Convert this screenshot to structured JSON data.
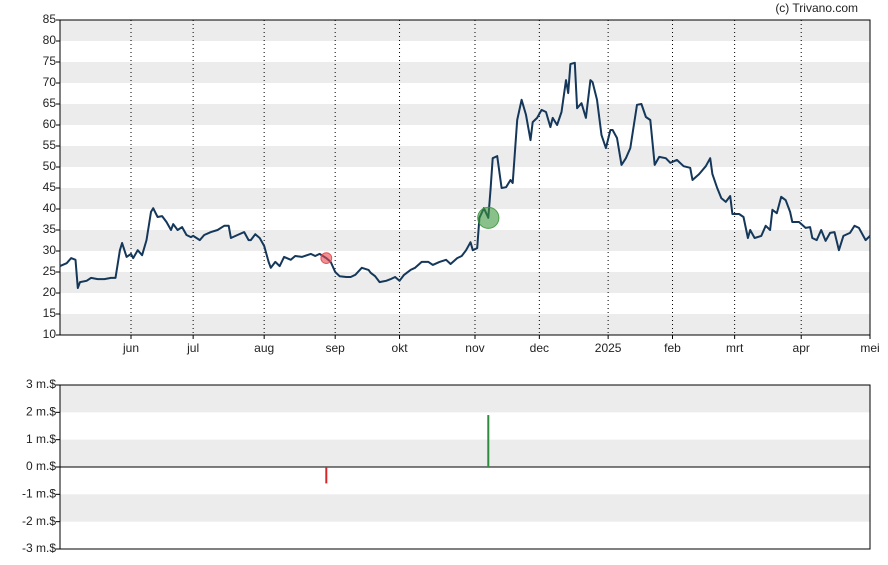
{
  "credit": "(c) Trivano.com",
  "chart_data": [
    {
      "type": "line",
      "xlim": [
        0,
        365
      ],
      "xticks": [
        {
          "value": 32,
          "label": "jun"
        },
        {
          "value": 60,
          "label": "jul"
        },
        {
          "value": 92,
          "label": "aug"
        },
        {
          "value": 124,
          "label": "sep"
        },
        {
          "value": 153,
          "label": "okt"
        },
        {
          "value": 187,
          "label": "nov"
        },
        {
          "value": 216,
          "label": "dec"
        },
        {
          "value": 247,
          "label": "2025"
        },
        {
          "value": 276,
          "label": "feb"
        },
        {
          "value": 304,
          "label": "mrt"
        },
        {
          "value": 334,
          "label": "apr"
        },
        {
          "value": 365,
          "label": "mei"
        }
      ],
      "ylim": [
        10,
        85
      ],
      "yticks": [
        10,
        15,
        20,
        25,
        30,
        35,
        40,
        45,
        50,
        55,
        60,
        65,
        70,
        75,
        80,
        85
      ],
      "grid": true,
      "series": [
        {
          "color": "#14375a",
          "x": [
            0,
            3,
            5,
            7,
            8,
            9,
            12,
            14,
            17,
            20,
            23,
            25,
            27,
            28,
            30,
            32,
            33,
            35,
            37,
            39,
            41,
            42,
            44,
            46,
            48,
            50,
            51,
            53,
            55,
            57,
            59,
            60,
            63,
            65,
            68,
            71,
            74,
            76,
            77,
            80,
            83,
            85,
            86,
            88,
            90,
            92,
            94,
            95,
            97,
            99,
            101,
            104,
            106,
            109,
            113,
            115,
            117,
            120,
            122,
            124,
            126,
            129,
            131,
            133,
            136,
            139,
            140,
            142,
            144,
            147,
            149,
            151,
            153,
            155,
            158,
            160,
            163,
            166,
            168,
            171,
            174,
            176,
            179,
            181,
            183,
            185,
            186,
            188,
            189,
            191,
            193,
            194,
            195,
            197,
            199,
            201,
            203,
            204,
            206,
            208,
            210,
            212,
            213,
            215,
            217,
            219,
            221,
            222,
            224,
            226,
            228,
            229,
            230,
            232,
            233,
            235,
            237,
            239,
            240,
            242,
            244,
            246,
            248,
            249,
            251,
            253,
            255,
            257,
            258,
            260,
            262,
            264,
            266,
            268,
            270,
            273,
            275,
            278,
            281,
            284,
            285,
            288,
            291,
            293,
            294,
            296,
            298,
            300,
            302,
            303,
            306,
            308,
            310,
            311,
            313,
            316,
            318,
            320,
            321,
            323,
            325,
            327,
            329,
            330,
            333,
            336,
            338,
            339,
            341,
            343,
            345,
            347,
            349,
            351,
            353,
            356,
            358,
            360,
            363,
            365
          ],
          "values": [
            26.4,
            27.1,
            28.3,
            27.9,
            21.2,
            22.6,
            22.9,
            23.6,
            23.3,
            23.3,
            23.6,
            23.6,
            30.2,
            31.9,
            28.6,
            29.3,
            28.3,
            30.2,
            29.0,
            32.6,
            39.3,
            40.2,
            38.1,
            38.3,
            36.9,
            35.0,
            36.4,
            35.0,
            35.7,
            33.8,
            33.3,
            33.6,
            32.6,
            33.8,
            34.5,
            35.0,
            36.0,
            36.0,
            33.1,
            33.8,
            34.5,
            32.6,
            32.6,
            34.0,
            33.1,
            31.2,
            27.4,
            26.0,
            27.4,
            26.4,
            28.6,
            27.9,
            28.8,
            28.6,
            29.3,
            28.8,
            29.3,
            28.3,
            27.4,
            25.0,
            24.0,
            23.8,
            23.8,
            24.3,
            26.0,
            25.5,
            24.8,
            24.0,
            22.6,
            22.9,
            23.3,
            23.8,
            22.9,
            24.3,
            25.5,
            26.0,
            27.4,
            27.4,
            26.7,
            27.4,
            27.9,
            26.9,
            28.3,
            28.8,
            30.2,
            32.1,
            30.2,
            30.7,
            37.9,
            40.2,
            37.9,
            44.5,
            52.1,
            52.6,
            45.0,
            45.2,
            46.9,
            46.2,
            61.2,
            66.0,
            62.4,
            56.4,
            60.7,
            61.7,
            63.6,
            63.1,
            59.5,
            61.7,
            60.0,
            63.1,
            70.7,
            67.6,
            74.5,
            74.8,
            64.0,
            65.2,
            61.7,
            70.7,
            70.2,
            66.0,
            57.6,
            54.5,
            58.8,
            58.8,
            56.9,
            50.5,
            52.1,
            54.5,
            57.9,
            64.8,
            65.0,
            61.9,
            61.2,
            50.5,
            52.4,
            52.1,
            51.0,
            51.7,
            50.2,
            49.8,
            46.9,
            48.3,
            50.2,
            52.1,
            48.3,
            45.2,
            42.6,
            41.7,
            43.1,
            38.8,
            38.8,
            38.1,
            33.1,
            35.0,
            33.1,
            33.6,
            36.0,
            35.0,
            39.8,
            39.0,
            42.9,
            42.1,
            39.3,
            36.9,
            36.9,
            35.5,
            35.7,
            33.1,
            32.6,
            35.0,
            32.4,
            34.3,
            34.5,
            30.2,
            33.6,
            34.3,
            36.0,
            35.5,
            32.6,
            33.6
          ]
        }
      ],
      "markers": [
        {
          "x": 120,
          "y": 28.3,
          "color": "#e8474c"
        },
        {
          "x": 193,
          "y": 37.9,
          "color": "#3c963c"
        }
      ]
    },
    {
      "type": "bar",
      "xlim": [
        0,
        365
      ],
      "ylim": [
        -3,
        3
      ],
      "yticks": [
        {
          "value": 3,
          "label": "3 m.$"
        },
        {
          "value": 2,
          "label": "2 m.$"
        },
        {
          "value": 1,
          "label": "1 m.$"
        },
        {
          "value": 0,
          "label": "0 m.$"
        },
        {
          "value": -1,
          "label": "-1 m.$"
        },
        {
          "value": -2,
          "label": "-2 m.$"
        },
        {
          "value": -3,
          "label": "-3 m.$"
        }
      ],
      "grid": true,
      "x": [
        120,
        193
      ],
      "values": [
        -0.6,
        1.9
      ],
      "colors": [
        "#d62728",
        "#2e8b3e"
      ]
    }
  ]
}
